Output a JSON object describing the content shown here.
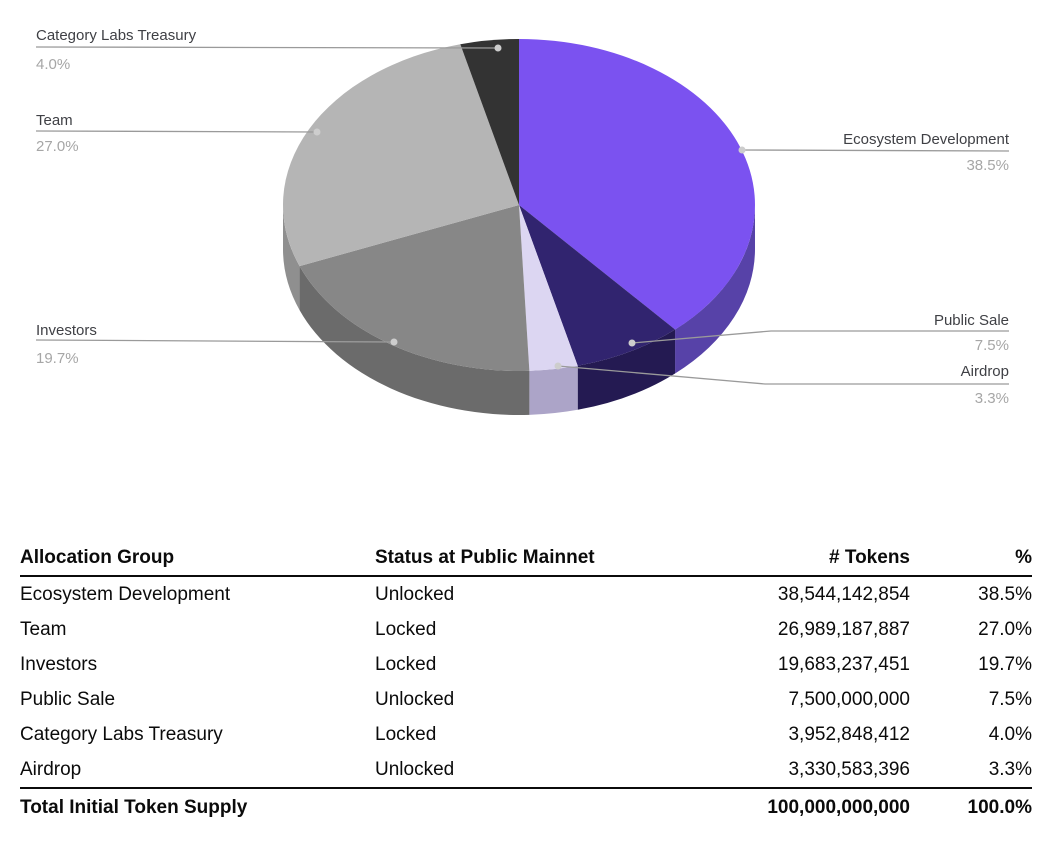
{
  "chart_data": {
    "type": "pie",
    "is_3d": true,
    "start_angle_deg": 0,
    "direction": "clockwise",
    "legend_position": "labeled-callouts",
    "title": "",
    "line_color": "#9A9A9A",
    "dot_color": "#CDCDCD",
    "label_color": "#3F4045",
    "pct_color": "#A6A6A6",
    "slices": [
      {
        "label": "Ecosystem Development",
        "pct": 38.5,
        "pct_label": "38.5%",
        "color": "#7B52F0",
        "side_color": "#5742A8"
      },
      {
        "label": "Public Sale",
        "pct": 7.5,
        "pct_label": "7.5%",
        "color": "#31246F",
        "side_color": "#241A52"
      },
      {
        "label": "Airdrop",
        "pct": 3.3,
        "pct_label": "3.3%",
        "color": "#DCD6F2",
        "side_color": "#ACA4C8"
      },
      {
        "label": "Investors",
        "pct": 19.7,
        "pct_label": "19.7%",
        "color": "#878787",
        "side_color": "#6B6B6B"
      },
      {
        "label": "Team",
        "pct": 27.0,
        "pct_label": "27.0%",
        "color": "#B5B5B5",
        "side_color": "#8F8F8F"
      },
      {
        "label": "Category Labs Treasury",
        "pct": 4.0,
        "pct_label": "4.0%",
        "color": "#333333",
        "side_color": "#262626"
      }
    ]
  },
  "table": {
    "columns": [
      "Allocation Group",
      "Status at Public Mainnet",
      "# Tokens",
      "%"
    ],
    "rows": [
      {
        "group": "Ecosystem Development",
        "status": "Unlocked",
        "tokens": "38,544,142,854",
        "pct": "38.5%"
      },
      {
        "group": "Team",
        "status": "Locked",
        "tokens": "26,989,187,887",
        "pct": "27.0%"
      },
      {
        "group": "Investors",
        "status": "Locked",
        "tokens": "19,683,237,451",
        "pct": "19.7%"
      },
      {
        "group": "Public Sale",
        "status": "Unlocked",
        "tokens": "7,500,000,000",
        "pct": "7.5%"
      },
      {
        "group": "Category Labs Treasury",
        "status": "Locked",
        "tokens": "3,952,848,412",
        "pct": "4.0%"
      },
      {
        "group": "Airdrop",
        "status": "Unlocked",
        "tokens": "3,330,583,396",
        "pct": "3.3%"
      }
    ],
    "total": {
      "label": "Total Initial Token Supply",
      "tokens": "100,000,000,000",
      "pct": "100.0%"
    }
  }
}
